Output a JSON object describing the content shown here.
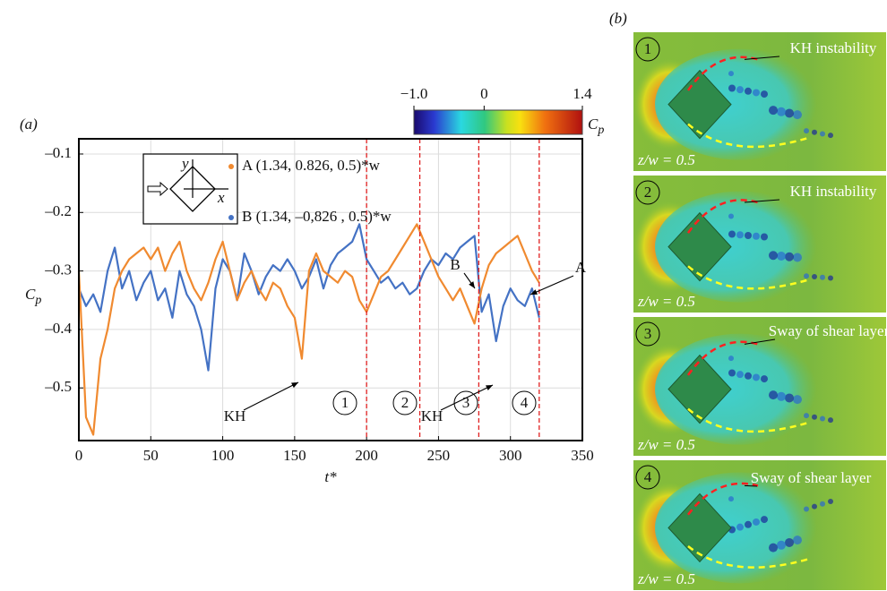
{
  "chart_data": {
    "type": "line",
    "panel_label": "(a)",
    "xlabel": "t*",
    "ylabel": "C",
    "ylabel_sub": "p",
    "xlim": [
      0,
      350
    ],
    "xticks": [
      0,
      50,
      100,
      150,
      200,
      250,
      300,
      350
    ],
    "ylim": [
      -0.59,
      -0.074
    ],
    "yticks": [
      {
        "value": -0.1,
        "label": "–0.1"
      },
      {
        "value": -0.2,
        "label": "–0.2"
      },
      {
        "value": -0.3,
        "label": "–0.3"
      },
      {
        "value": -0.4,
        "label": "–0.4"
      },
      {
        "value": -0.5,
        "label": "–0.5"
      }
    ],
    "grid": true,
    "x": [
      0,
      5,
      10,
      15,
      20,
      25,
      30,
      35,
      40,
      45,
      50,
      55,
      60,
      65,
      70,
      75,
      80,
      85,
      90,
      95,
      100,
      105,
      110,
      115,
      120,
      125,
      130,
      135,
      140,
      145,
      150,
      155,
      160,
      165,
      170,
      175,
      180,
      185,
      190,
      195,
      200,
      205,
      210,
      215,
      220,
      225,
      230,
      235,
      240,
      245,
      250,
      255,
      260,
      265,
      270,
      275,
      280,
      285,
      290,
      295,
      300,
      305,
      310,
      315,
      320
    ],
    "series": [
      {
        "name": "A (1.34, 0.826, 0.5)*w",
        "color": "#f08a30",
        "values": [
          -0.3,
          -0.55,
          -0.58,
          -0.45,
          -0.4,
          -0.33,
          -0.3,
          -0.28,
          -0.27,
          -0.26,
          -0.28,
          -0.26,
          -0.3,
          -0.27,
          -0.25,
          -0.3,
          -0.33,
          -0.35,
          -0.32,
          -0.28,
          -0.25,
          -0.3,
          -0.35,
          -0.32,
          -0.3,
          -0.33,
          -0.35,
          -0.32,
          -0.33,
          -0.36,
          -0.38,
          -0.45,
          -0.3,
          -0.27,
          -0.3,
          -0.31,
          -0.32,
          -0.3,
          -0.31,
          -0.35,
          -0.37,
          -0.34,
          -0.31,
          -0.3,
          -0.28,
          -0.26,
          -0.24,
          -0.22,
          -0.25,
          -0.28,
          -0.31,
          -0.33,
          -0.35,
          -0.33,
          -0.36,
          -0.39,
          -0.33,
          -0.29,
          -0.27,
          -0.26,
          -0.25,
          -0.24,
          -0.27,
          -0.3,
          -0.32
        ]
      },
      {
        "name": "B (1.34, –0,826 , 0.5)*w",
        "color": "#4472c4",
        "values": [
          -0.33,
          -0.36,
          -0.34,
          -0.37,
          -0.3,
          -0.26,
          -0.33,
          -0.3,
          -0.35,
          -0.32,
          -0.3,
          -0.35,
          -0.33,
          -0.38,
          -0.3,
          -0.34,
          -0.36,
          -0.4,
          -0.47,
          -0.33,
          -0.28,
          -0.3,
          -0.35,
          -0.27,
          -0.3,
          -0.34,
          -0.31,
          -0.29,
          -0.3,
          -0.28,
          -0.3,
          -0.33,
          -0.31,
          -0.28,
          -0.33,
          -0.29,
          -0.27,
          -0.26,
          -0.25,
          -0.22,
          -0.28,
          -0.3,
          -0.32,
          -0.31,
          -0.33,
          -0.32,
          -0.34,
          -0.33,
          -0.3,
          -0.28,
          -0.29,
          -0.27,
          -0.28,
          -0.26,
          -0.25,
          -0.24,
          -0.37,
          -0.34,
          -0.42,
          -0.36,
          -0.33,
          -0.35,
          -0.36,
          -0.33,
          -0.38
        ]
      }
    ],
    "inset": {
      "x_axis": "x",
      "y_axis": "y"
    },
    "vlines": [
      200,
      237,
      278,
      320
    ],
    "vline_color": "#e02020",
    "phase_labels": [
      "1",
      "2",
      "3",
      "4"
    ],
    "annotations": [
      "KH",
      "KH",
      "B",
      "A"
    ],
    "colorbar": {
      "lim": [
        -1.0,
        1.4
      ],
      "ticks": [
        {
          "value": -1.0,
          "label": "−1.0"
        },
        0,
        1.4
      ],
      "label": "C",
      "label_sub": "p"
    }
  },
  "flow_panels": {
    "label": "(b)",
    "panels": [
      {
        "number": "1",
        "annotation": "KH instability",
        "plane": "z/w = 0.5"
      },
      {
        "number": "2",
        "annotation": "KH instability",
        "plane": "z/w = 0.5"
      },
      {
        "number": "3",
        "annotation": "Sway of shear layer",
        "plane": "z/w = 0.5"
      },
      {
        "number": "4",
        "annotation": "Sway of shear layer",
        "plane": "z/w = 0.5"
      }
    ]
  }
}
